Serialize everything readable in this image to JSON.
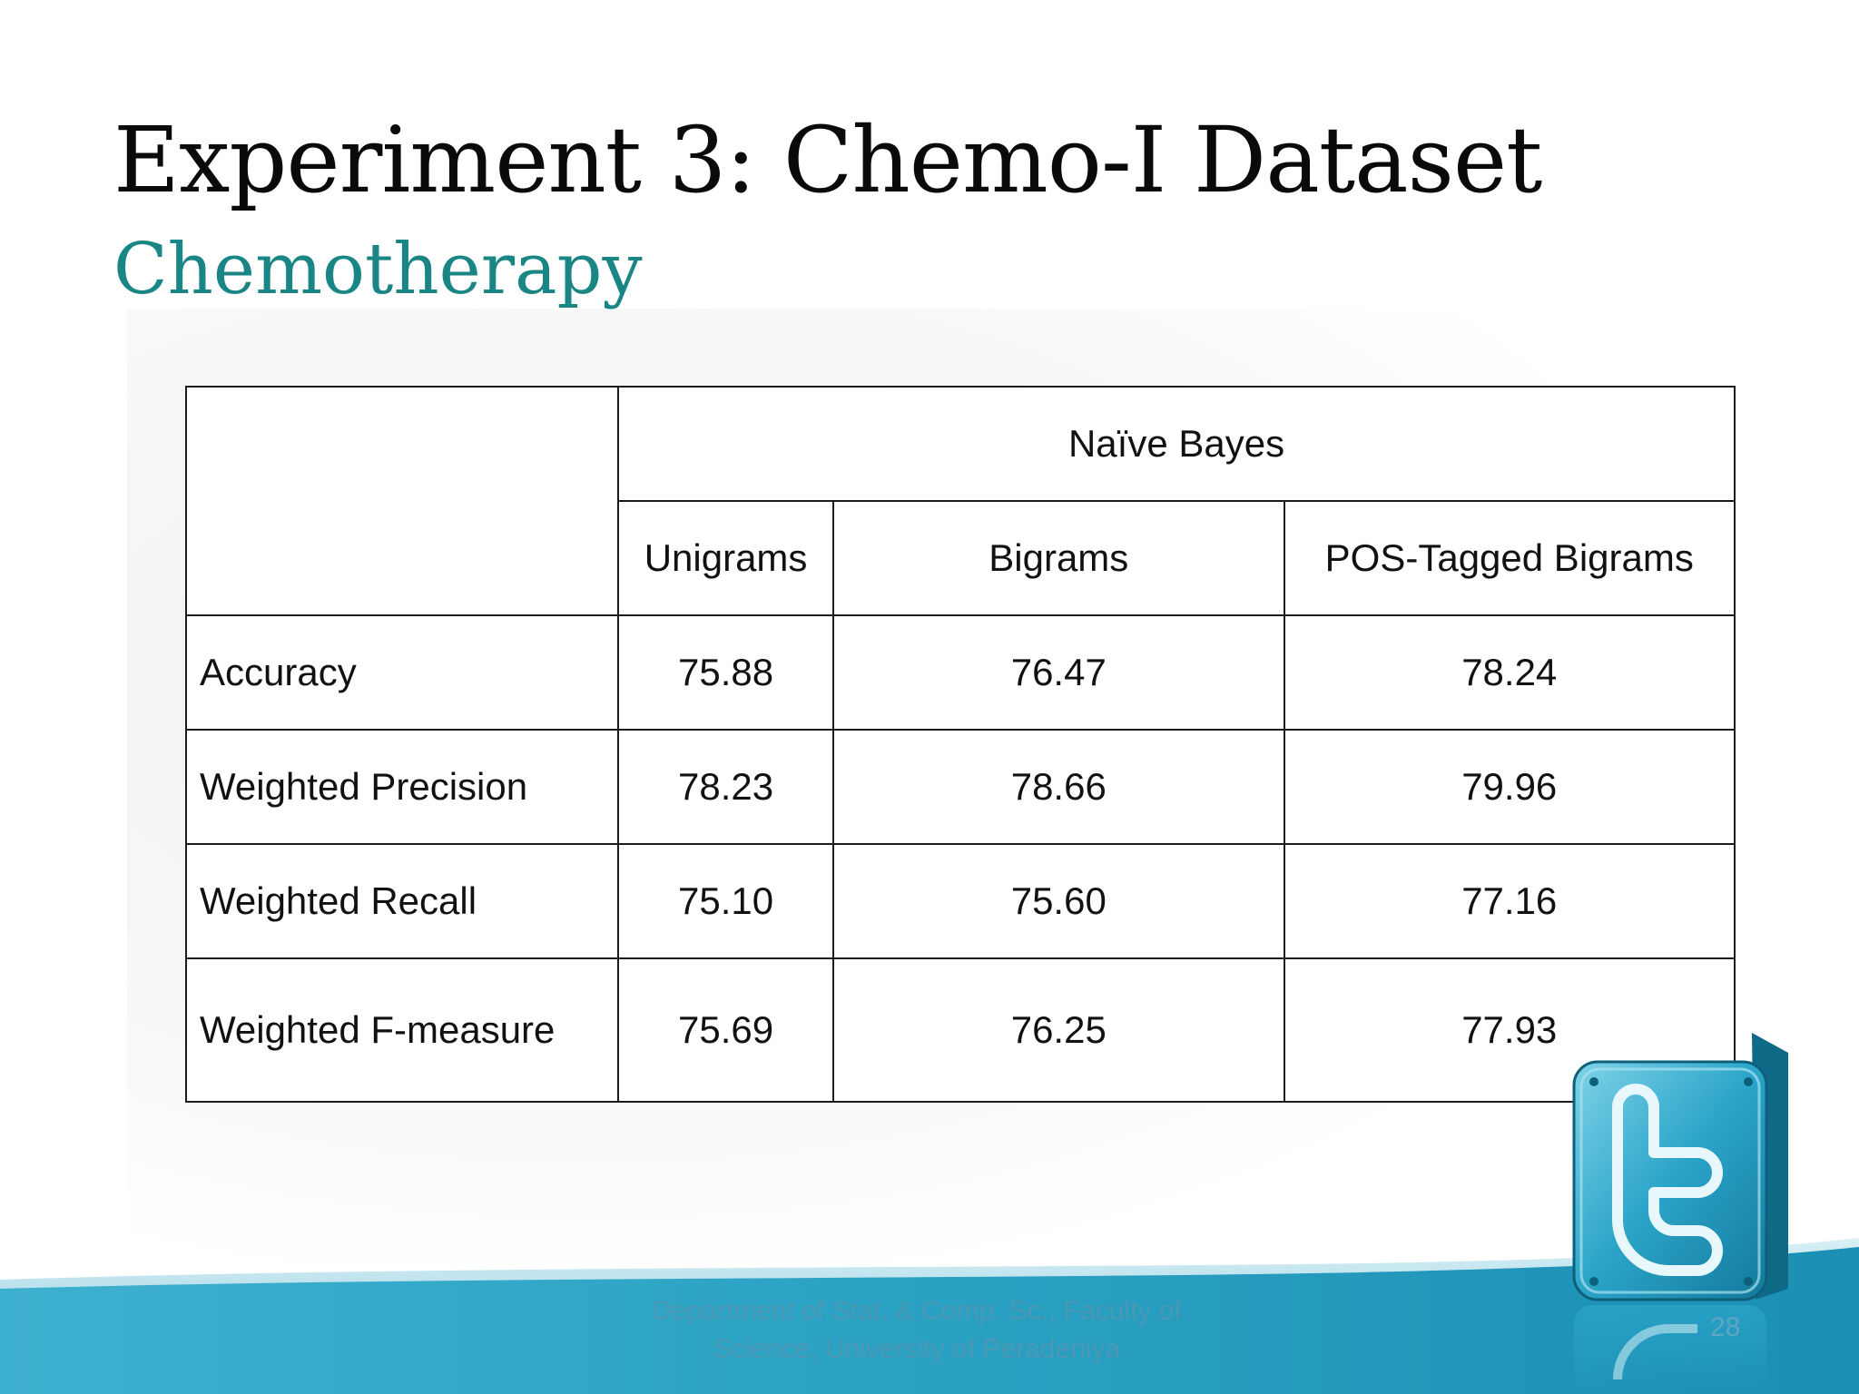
{
  "slide": {
    "title": "Experiment 3: Chemo-I Dataset",
    "subtitle": "Chemotherapy",
    "accent_color": "#1a8585",
    "footer_text": "Department of Stat. & Comp. Sc., Faculty of Science, University of Peradeniya",
    "page_number": "28"
  },
  "table": {
    "group_header": "Naïve Bayes",
    "columns": [
      "Unigrams",
      "Bigrams",
      "POS-Tagged Bigrams"
    ],
    "rows": [
      {
        "label": "Accuracy",
        "values": [
          "75.88",
          "76.47",
          "78.24"
        ]
      },
      {
        "label": "Weighted Precision",
        "values": [
          "78.23",
          "78.66",
          "79.96"
        ]
      },
      {
        "label": "Weighted Recall",
        "values": [
          "75.10",
          "75.60",
          "77.16"
        ]
      },
      {
        "label": "Weighted F-measure",
        "values": [
          "75.69",
          "76.25",
          "77.93"
        ]
      }
    ]
  },
  "decorations": {
    "logo_icon": "twitter-bird-icon",
    "wave_color": "#2aa1c3"
  }
}
